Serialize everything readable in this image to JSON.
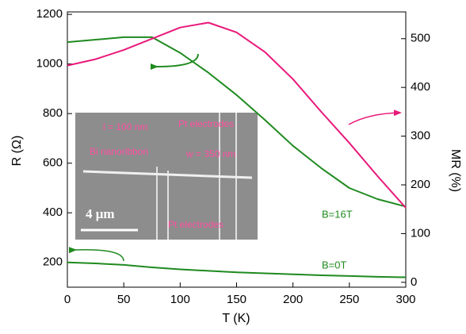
{
  "chart_data": {
    "type": "line",
    "x_label": "T (K)",
    "y_label": "R (Ω)",
    "y2_label": "MR (%)",
    "x": [
      0,
      25,
      50,
      75,
      100,
      125,
      150,
      175,
      200,
      225,
      250,
      275,
      300
    ],
    "xlim": [
      0,
      300
    ],
    "xticks": [
      0,
      50,
      100,
      150,
      200,
      250,
      300
    ],
    "ylim": [
      100,
      1210
    ],
    "yticks": [
      200,
      400,
      600,
      800,
      1000,
      1200
    ],
    "y2lim": [
      -10,
      555
    ],
    "y2ticks": [
      0,
      100,
      200,
      300,
      400,
      500
    ],
    "series": [
      {
        "name": "B=16T",
        "color": "#1f8a1f",
        "values": [
          1088,
          1098,
          1108,
          1108,
          1045,
          965,
          875,
          775,
          670,
          580,
          500,
          455,
          425
        ]
      },
      {
        "name": "B=0T",
        "color": "#1f8a1f",
        "values": [
          200,
          196,
          190,
          180,
          172,
          166,
          160,
          156,
          152,
          148,
          145,
          142,
          140
        ]
      },
      {
        "color": "#e8197a",
        "axis": "y2",
        "values": [
          445,
          458,
          477,
          500,
          523,
          533,
          513,
          473,
          417,
          350,
          286,
          218,
          153
        ]
      }
    ],
    "inset": {
      "labels": [
        "l = 100 nm",
        "Pt electrodes",
        "Bi nanoribbon",
        "w = 350 nm",
        "Pt electrodes"
      ],
      "scale_bar": "4 μm"
    }
  }
}
